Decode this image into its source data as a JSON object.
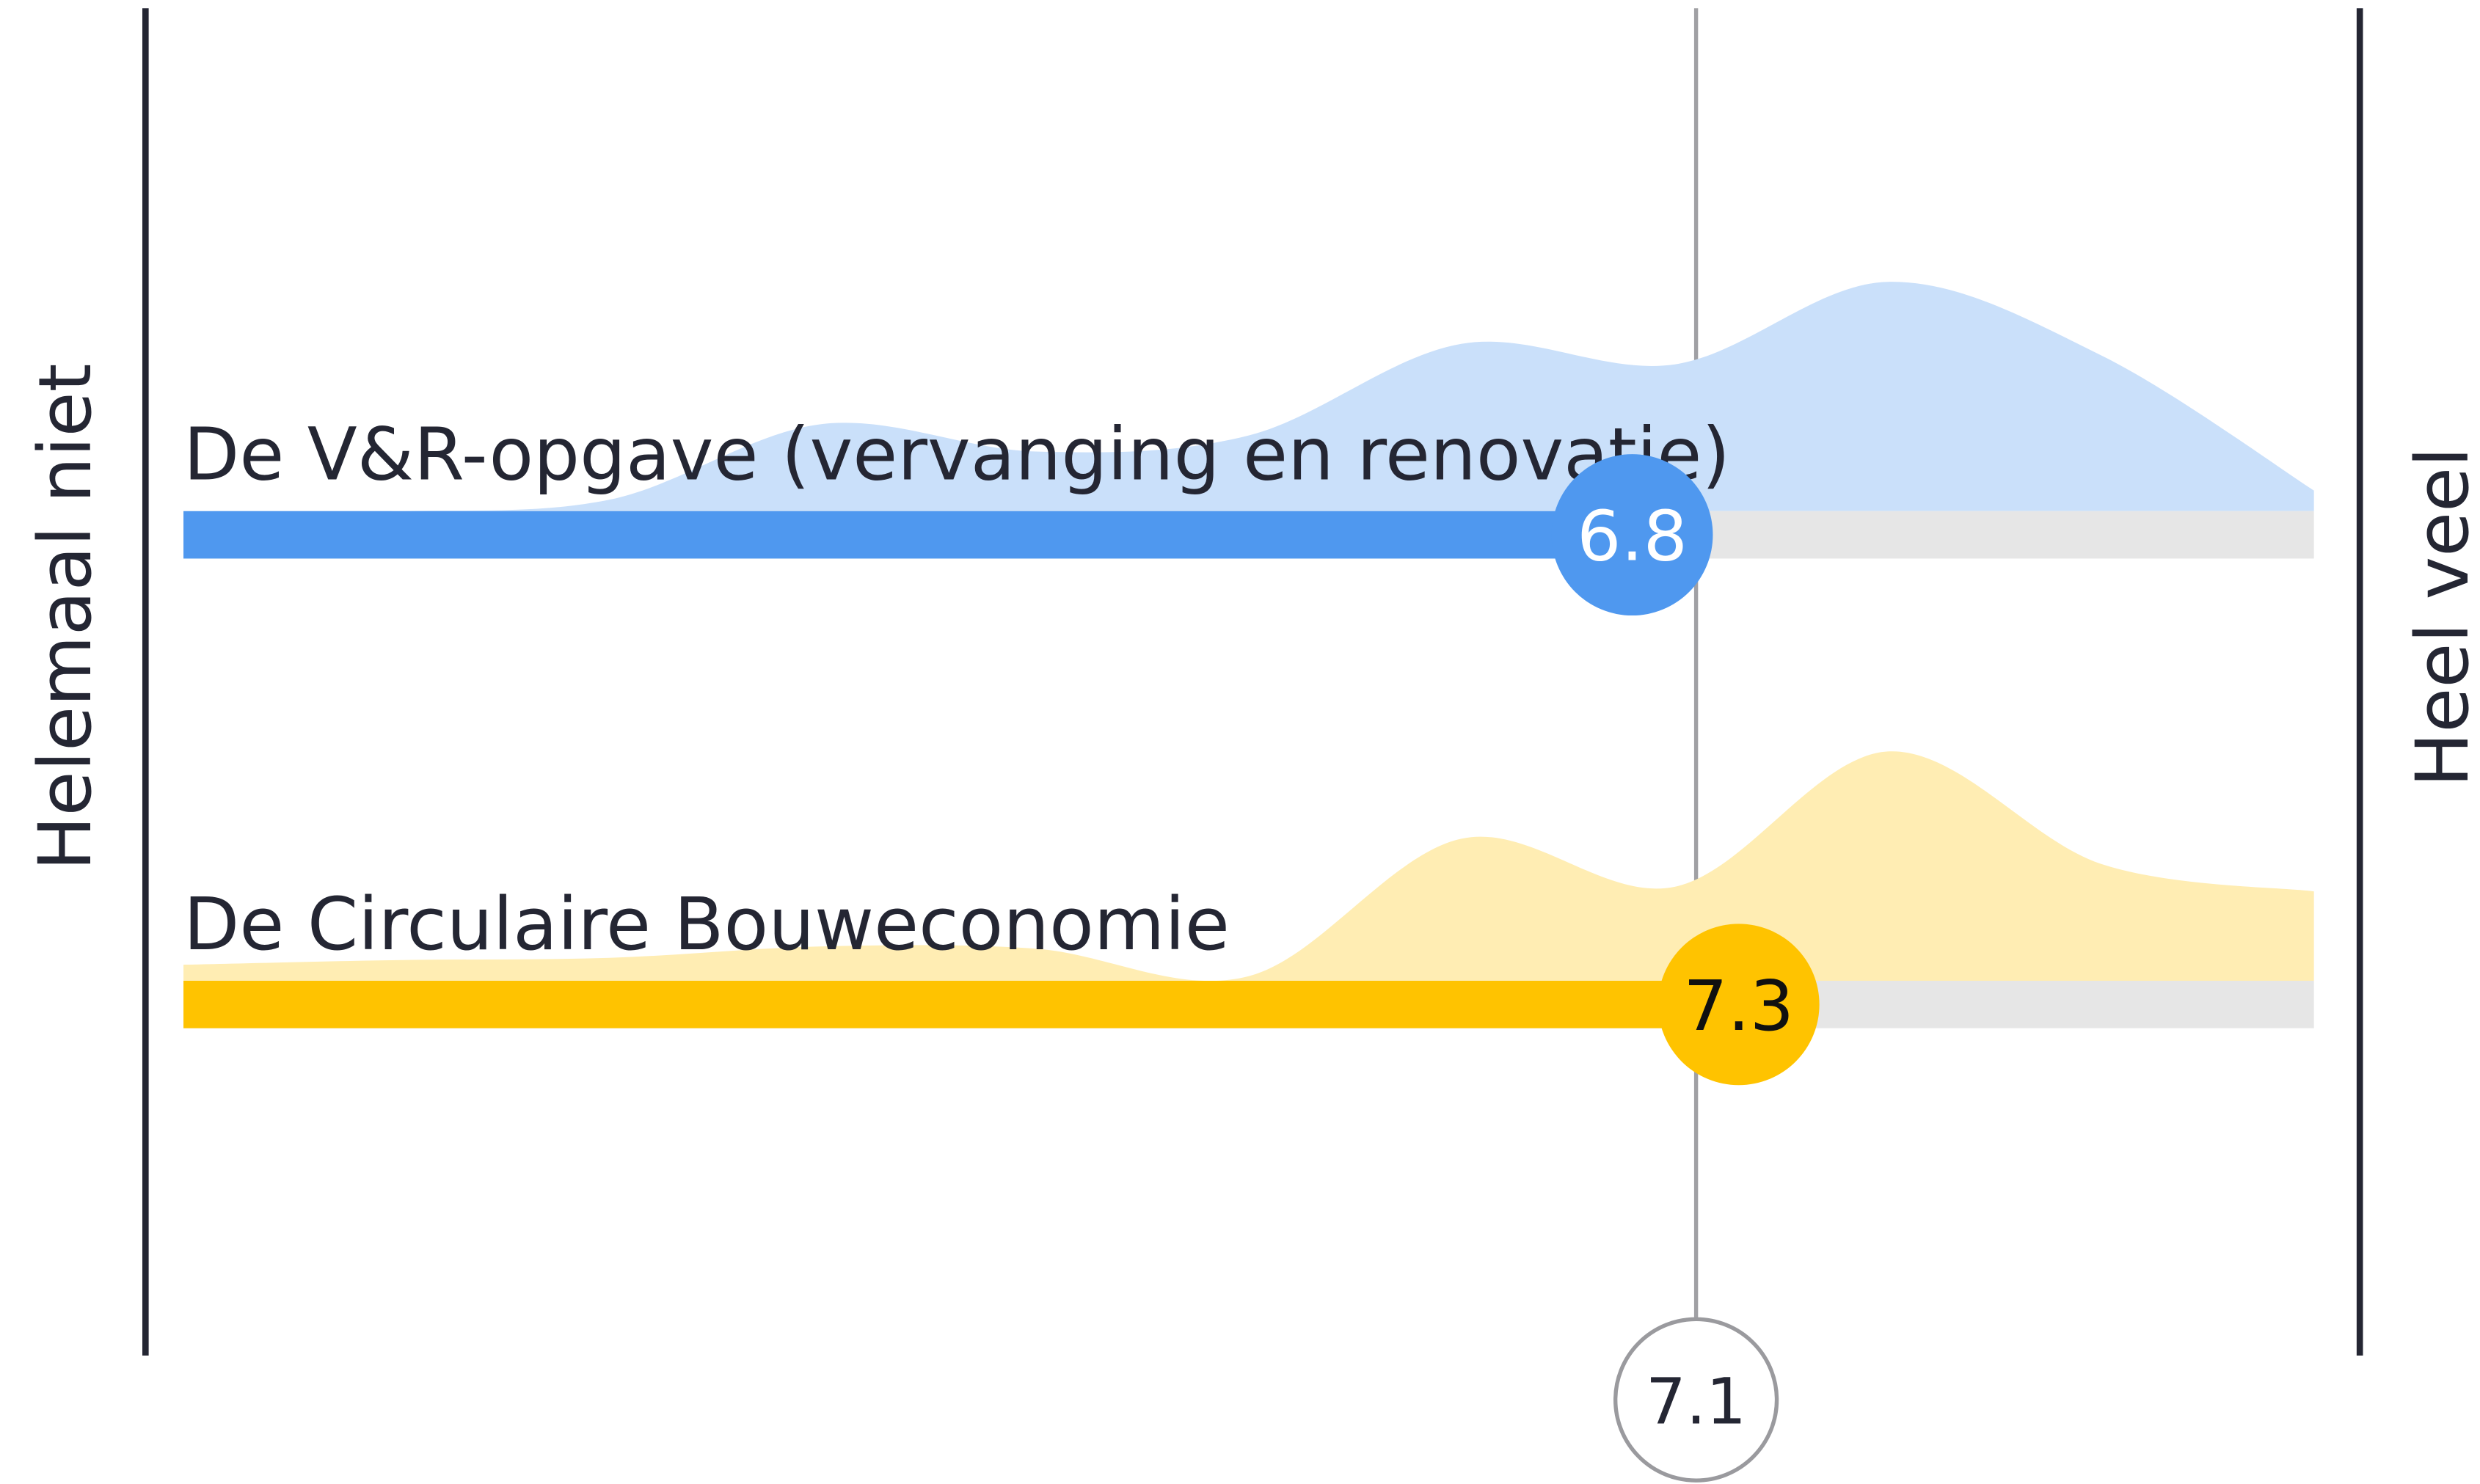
{
  "chart_data": {
    "type": "scale",
    "xlim": [
      0,
      10
    ],
    "left_label": "Helemaal niet",
    "right_label": "Heel veel",
    "average": 7.1,
    "series": [
      {
        "name": "De V&R-opgave (vervanging en renovatie)",
        "color": "#4f98ef",
        "values": [
          6.8
        ],
        "distribution": [
          0,
          0,
          5,
          38,
          26,
          33,
          73,
          64,
          100,
          68,
          9
        ]
      },
      {
        "name": "De Circulaire Bouweconomie",
        "color": "#ffc300",
        "values": [
          7.3
        ],
        "distribution": [
          7,
          9,
          10,
          15,
          14,
          2,
          62,
          41,
          100,
          51,
          39
        ]
      }
    ]
  }
}
